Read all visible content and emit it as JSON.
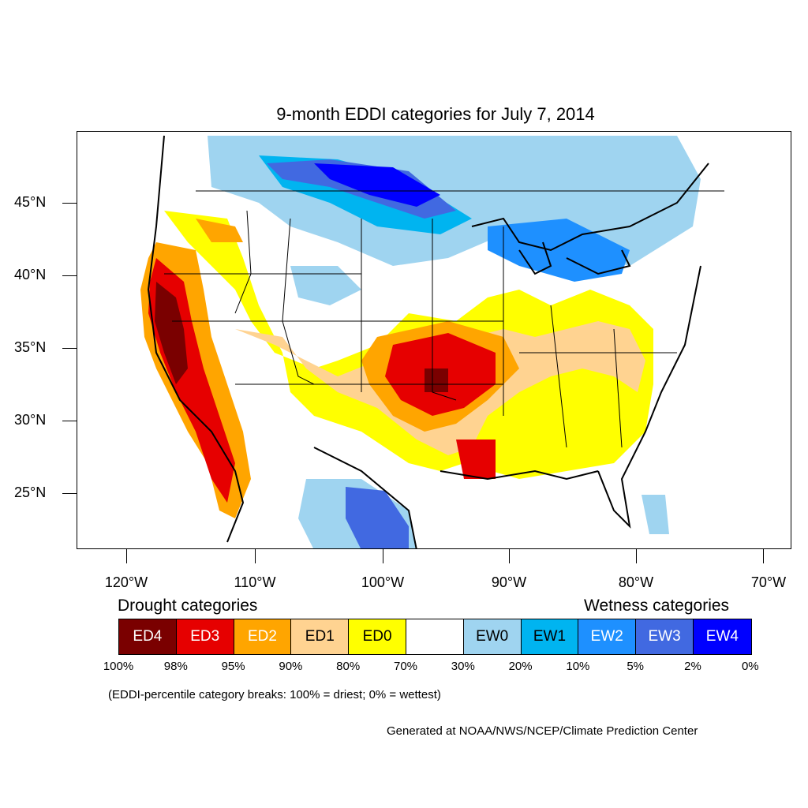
{
  "title": "9-month EDDI categories for July 7, 2014",
  "lat_labels": [
    "45°N",
    "40°N",
    "35°N",
    "30°N",
    "25°N"
  ],
  "lon_labels": [
    "120°W",
    "110°W",
    "100°W",
    "90°W",
    "80°W",
    "70°W"
  ],
  "legend": {
    "drought_heading": "Drought categories",
    "wetness_heading": "Wetness categories",
    "categories": [
      {
        "label": "ED4",
        "color": "#7a0000",
        "text_color": "#ffffff"
      },
      {
        "label": "ED3",
        "color": "#e60000",
        "text_color": "#ffffff"
      },
      {
        "label": "ED2",
        "color": "#ffa500",
        "text_color": "#ffffff"
      },
      {
        "label": "ED1",
        "color": "#ffd391",
        "text_color": "#000000"
      },
      {
        "label": "ED0",
        "color": "#ffff00",
        "text_color": "#000000"
      },
      {
        "label": "",
        "color": "#ffffff",
        "text_color": "#000000"
      },
      {
        "label": "EW0",
        "color": "#9fd4f0",
        "text_color": "#000000"
      },
      {
        "label": "EW1",
        "color": "#00b4f0",
        "text_color": "#000000"
      },
      {
        "label": "EW2",
        "color": "#1e90ff",
        "text_color": "#ffffff"
      },
      {
        "label": "EW3",
        "color": "#4169e1",
        "text_color": "#ffffff"
      },
      {
        "label": "EW4",
        "color": "#0000ff",
        "text_color": "#ffffff"
      }
    ],
    "breaks": [
      "100%",
      "98%",
      "95%",
      "90%",
      "80%",
      "70%",
      "30%",
      "20%",
      "10%",
      "5%",
      "2%",
      "0%"
    ]
  },
  "note": "(EDDI-percentile category breaks: 100% = driest; 0% = wettest)",
  "credit": "Generated at NOAA/NWS/NCEP/Climate Prediction Center"
}
